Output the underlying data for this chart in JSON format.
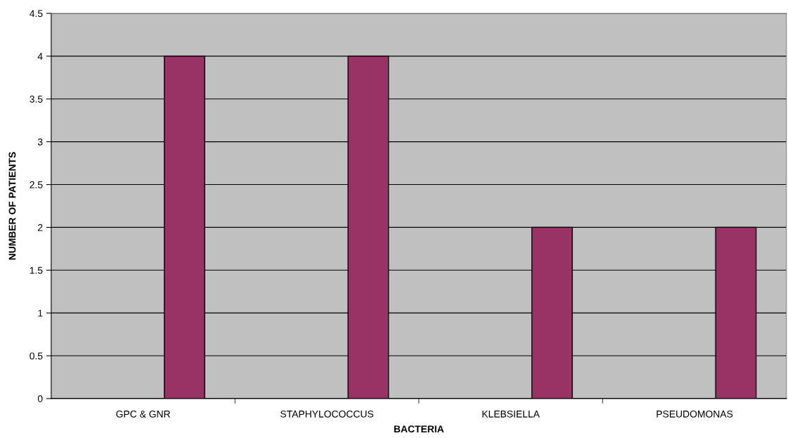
{
  "chart_data": {
    "type": "bar",
    "xlabel": "BACTERIA",
    "ylabel": "NUMBER OF PATIENTS",
    "categories": [
      "GPC & GNR",
      "STAPHYLOCOCCUS",
      "KLEBSIELLA",
      "PSEUDOMONAS"
    ],
    "values": [
      4,
      4,
      2,
      2
    ],
    "color": "#993366",
    "ylim": [
      0,
      4.5
    ],
    "yticks": [
      0,
      0.5,
      1,
      1.5,
      2,
      2.5,
      3,
      3.5,
      4,
      4.5
    ],
    "grid": "y",
    "legend": false
  }
}
